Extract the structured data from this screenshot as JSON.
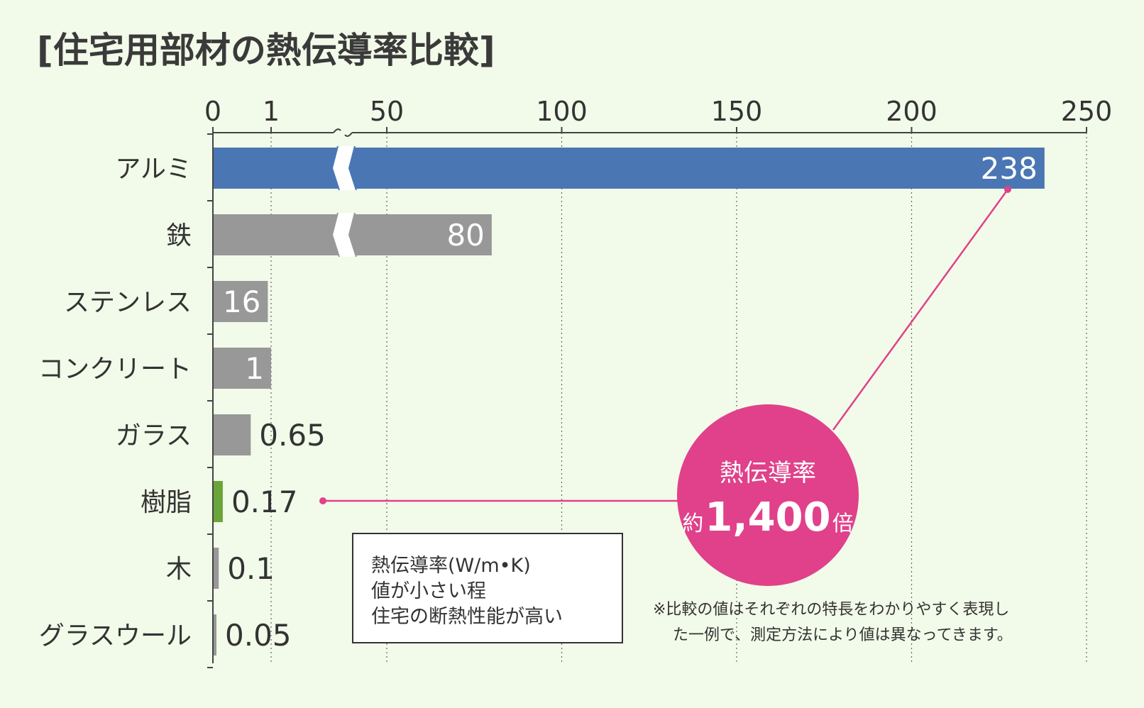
{
  "chart_data": {
    "type": "bar",
    "orientation": "horizontal",
    "title": "[住宅用部材の熱伝導率比較]",
    "x_ticks": [
      "0",
      "1",
      "50",
      "100",
      "150",
      "200",
      "250"
    ],
    "x_tick_values": [
      0,
      1,
      50,
      100,
      150,
      200,
      250
    ],
    "xlim": [
      0,
      250
    ],
    "axis_break": "between 1 and 50",
    "grid": true,
    "categories": [
      "アルミ",
      "鉄",
      "ステンレス",
      "コンクリート",
      "ガラス",
      "樹脂",
      "木",
      "グラスウール"
    ],
    "values": [
      238,
      80,
      16,
      1,
      0.65,
      0.17,
      0.1,
      0.05
    ],
    "value_labels": [
      "238",
      "80",
      "16",
      "1",
      "0.65",
      "0.17",
      "0.1",
      "0.05"
    ],
    "highlight": {
      "アルミ": "#4a76b4",
      "樹脂": "#6aa53a"
    },
    "legend_box": {
      "lines": [
        "熱伝導率(W/m•K)",
        "値が小さい程",
        "住宅の断熱性能が高い"
      ]
    },
    "callout": {
      "line1": "熱伝導率",
      "prefix": "約",
      "value": "1,400",
      "suffix": "倍",
      "color": "#e0418a"
    },
    "note": [
      "※比較の値はそれぞれの特長をわかりやすく表現し",
      "た一例で、測定方法により値は異なってきます。"
    ]
  },
  "colors": {
    "default_bar": "#989898",
    "aluminum": "#4a76b4",
    "resin": "#6aa53a",
    "callout": "#e0418a"
  }
}
